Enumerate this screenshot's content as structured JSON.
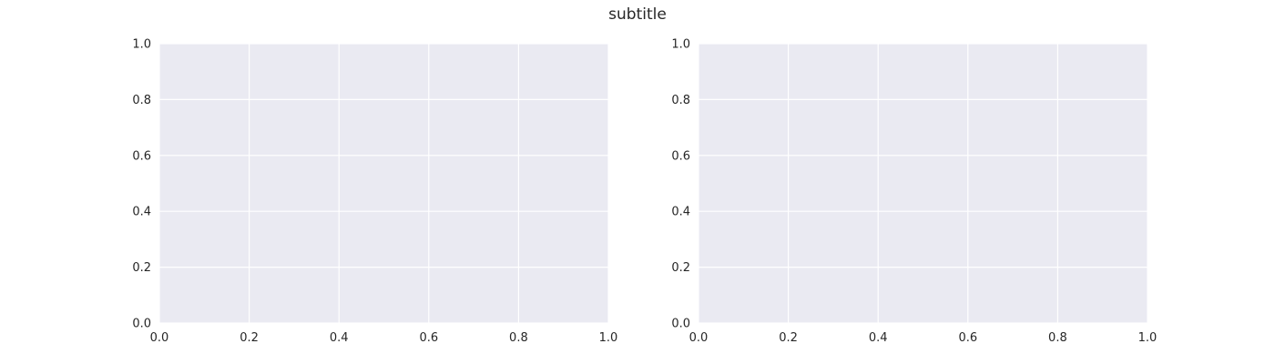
{
  "figure": {
    "suptitle": "subtitle"
  },
  "style": {
    "axes_facecolor": "#eaeaf2",
    "grid_color": "#ffffff",
    "text_color": "#262626"
  },
  "chart_data": [
    {
      "type": "line",
      "series": [],
      "xlim": [
        0.0,
        1.0
      ],
      "ylim": [
        0.0,
        1.0
      ],
      "xticks": [
        "0.0",
        "0.2",
        "0.4",
        "0.6",
        "0.8",
        "1.0"
      ],
      "yticks": [
        "0.0",
        "0.2",
        "0.4",
        "0.6",
        "0.8",
        "1.0"
      ],
      "grid": true
    },
    {
      "type": "line",
      "series": [],
      "xlim": [
        0.0,
        1.0
      ],
      "ylim": [
        0.0,
        1.0
      ],
      "xticks": [
        "0.0",
        "0.2",
        "0.4",
        "0.6",
        "0.8",
        "1.0"
      ],
      "yticks": [
        "0.0",
        "0.2",
        "0.4",
        "0.6",
        "0.8",
        "1.0"
      ],
      "grid": true
    }
  ]
}
